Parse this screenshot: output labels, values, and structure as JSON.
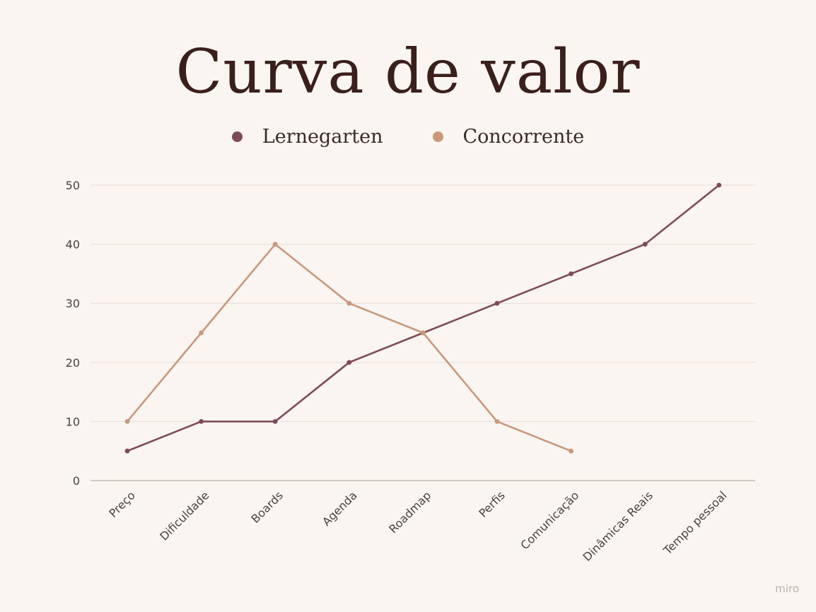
{
  "chart_data": {
    "type": "line",
    "title": "Curva de valor",
    "categories": [
      "Preço",
      "Dificuldade",
      "Boards",
      "Agenda",
      "Roadmap",
      "Perfis",
      "Comunicação",
      "Dinâmicas Reais",
      "Tempo pessoal"
    ],
    "series": [
      {
        "name": "Lernegarten",
        "color": "#7e4a5a",
        "values": [
          5,
          10,
          10,
          20,
          25,
          30,
          35,
          40,
          50
        ]
      },
      {
        "name": "Concorrente",
        "color": "#c9987b",
        "values": [
          10,
          25,
          40,
          30,
          25,
          10,
          5,
          null,
          null
        ]
      }
    ],
    "yticks": [
      0,
      10,
      20,
      30,
      40,
      50
    ],
    "ylim": [
      0,
      50
    ],
    "grid": true,
    "legend": "top-center"
  },
  "watermark": "miro"
}
